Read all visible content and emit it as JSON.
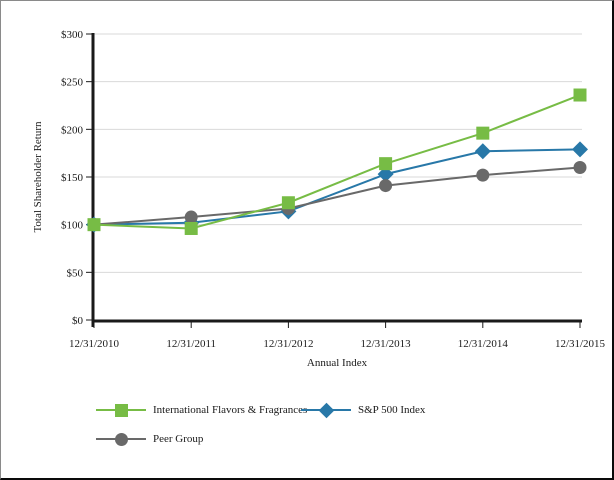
{
  "page": {
    "background": "#ffffff",
    "frame_border_color": "#0a0a0a"
  },
  "chart_data": {
    "type": "line",
    "title": "",
    "xlabel": "Annual Index",
    "ylabel": "Total Shareholder Return",
    "categories": [
      "12/31/2010",
      "12/31/2011",
      "12/31/2012",
      "12/31/2013",
      "12/31/2014",
      "12/31/2015"
    ],
    "ylim": [
      0,
      300
    ],
    "y_ticks": [
      {
        "value": 0,
        "label": "$0"
      },
      {
        "value": 50,
        "label": "$50"
      },
      {
        "value": 100,
        "label": "$100"
      },
      {
        "value": 150,
        "label": "$150"
      },
      {
        "value": 200,
        "label": "$200"
      },
      {
        "value": 250,
        "label": "$250"
      },
      {
        "value": 300,
        "label": "$300"
      }
    ],
    "grid": "horizontal",
    "legend_position": "bottom",
    "series": [
      {
        "name": "International Flavors & Fragrances",
        "marker": "square",
        "color": "#77BC45",
        "values": [
          100,
          96,
          123,
          164,
          196,
          236
        ]
      },
      {
        "name": "S&P 500 Index",
        "marker": "diamond",
        "color": "#2878A8",
        "values": [
          100,
          102,
          114,
          153,
          177,
          179
        ]
      },
      {
        "name": "Peer Group",
        "marker": "circle",
        "color": "#696969",
        "values": [
          100,
          108,
          117,
          141,
          152,
          160
        ]
      }
    ],
    "layout": {
      "grid_color": "#D9D9D9",
      "axis_color": "#1a1a1a",
      "text_color": "#1a1a1a",
      "draw_order": [
        1,
        2,
        0
      ]
    }
  }
}
